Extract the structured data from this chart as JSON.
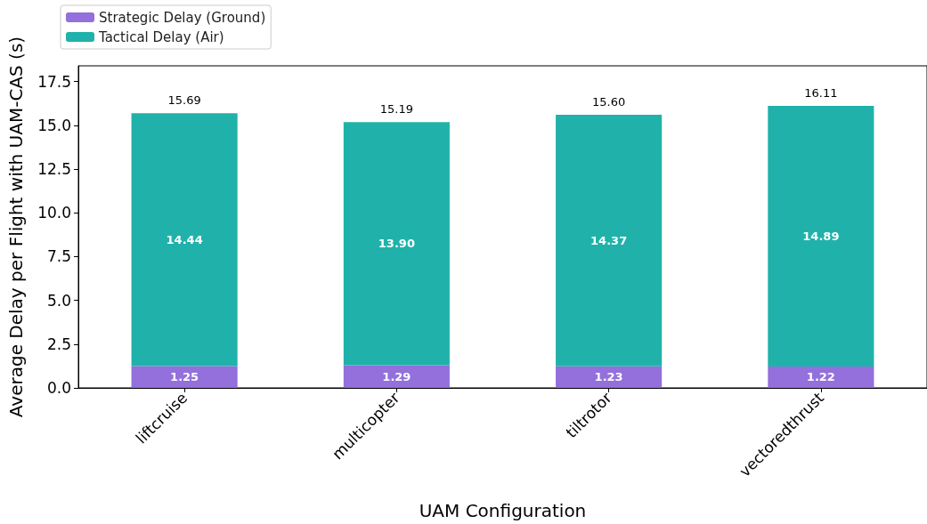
{
  "chart_data": {
    "type": "bar",
    "stacked": true,
    "categories": [
      "liftcruise",
      "multicopter",
      "tiltrotor",
      "vectoredthrust"
    ],
    "series": [
      {
        "name": "Strategic Delay (Ground)",
        "color": "#9370db",
        "values": [
          1.25,
          1.29,
          1.23,
          1.22
        ],
        "value_labels": [
          "1.25",
          "1.29",
          "1.23",
          "1.22"
        ]
      },
      {
        "name": "Tactical Delay (Air)",
        "color": "#20b2aa",
        "values": [
          14.44,
          13.9,
          14.37,
          14.89
        ],
        "value_labels": [
          "14.44",
          "13.90",
          "14.37",
          "14.89"
        ]
      }
    ],
    "totals": [
      "15.69",
      "15.19",
      "15.60",
      "16.11"
    ],
    "xlabel": "UAM Configuration",
    "ylabel": "Average Delay per Flight with UAM-CAS (s)",
    "ylim": [
      0,
      18.4
    ],
    "yticks": [
      {
        "value": 0,
        "label": "0.0"
      },
      2.5,
      {
        "value": 5,
        "label": "5.0"
      },
      7.5,
      {
        "value": 10,
        "label": "10.0"
      },
      12.5,
      {
        "value": 15,
        "label": "15.0"
      },
      17.5
    ],
    "grid": false,
    "legend": "top left"
  }
}
